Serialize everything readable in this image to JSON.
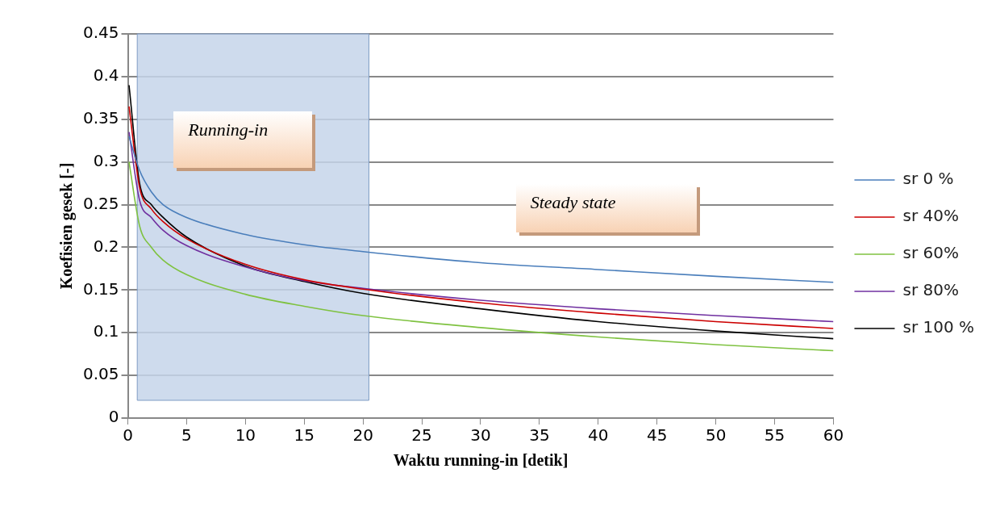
{
  "chart_data": {
    "type": "line",
    "xlabel": "Waktu running-in [detik]",
    "ylabel": "Koefisien gesek [-]",
    "x": [
      0.1,
      1,
      2,
      3,
      5,
      10,
      15,
      20,
      30,
      40,
      50,
      60
    ],
    "series": [
      {
        "name": "sr 0 %",
        "color": "#4a7ebb",
        "values": [
          0.33,
          0.29,
          0.265,
          0.25,
          0.235,
          0.215,
          0.203,
          0.195,
          0.182,
          0.174,
          0.166,
          0.159
        ]
      },
      {
        "name": "sr 40%",
        "color": "#cc0000",
        "values": [
          0.365,
          0.27,
          0.245,
          0.23,
          0.21,
          0.18,
          0.162,
          0.151,
          0.135,
          0.123,
          0.113,
          0.105
        ]
      },
      {
        "name": "sr 60%",
        "color": "#7fc241",
        "values": [
          0.3,
          0.225,
          0.2,
          0.185,
          0.168,
          0.145,
          0.131,
          0.12,
          0.106,
          0.095,
          0.086,
          0.079
        ]
      },
      {
        "name": "sr 80%",
        "color": "#7030a0",
        "values": [
          0.335,
          0.255,
          0.235,
          0.22,
          0.202,
          0.177,
          0.161,
          0.152,
          0.138,
          0.128,
          0.12,
          0.113
        ]
      },
      {
        "name": "sr 100 %",
        "color": "#000000",
        "values": [
          0.39,
          0.275,
          0.25,
          0.235,
          0.212,
          0.178,
          0.16,
          0.146,
          0.128,
          0.113,
          0.102,
          0.093
        ]
      }
    ],
    "xlim": [
      0,
      60
    ],
    "xticks": [
      0,
      5,
      10,
      15,
      20,
      25,
      30,
      35,
      40,
      45,
      50,
      55,
      60
    ],
    "ylim": [
      0,
      0.45
    ],
    "yticks": [
      0,
      0.05,
      0.1,
      0.15,
      0.2,
      0.25,
      0.3,
      0.35,
      0.4,
      0.45
    ],
    "grid": "y",
    "legend": "right",
    "marker": "none",
    "line_style": "solid",
    "bands": [
      {
        "axis": "x",
        "from": 0.8,
        "to": 20.5,
        "label": "Running-in",
        "color": "#c5d5ea"
      }
    ],
    "annotations": [
      "Steady state"
    ]
  }
}
